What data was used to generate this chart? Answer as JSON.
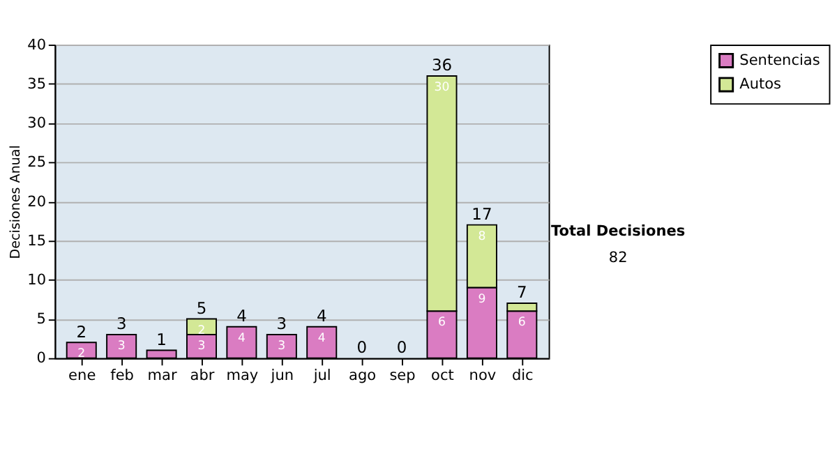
{
  "chart_data": {
    "type": "bar",
    "stacked": true,
    "ylabel": "Decisiones Anual",
    "categories": [
      "ene",
      "feb",
      "mar",
      "abr",
      "may",
      "jun",
      "jul",
      "ago",
      "sep",
      "oct",
      "nov",
      "dic"
    ],
    "series": [
      {
        "name": "Sentencias",
        "color": "#da7cc2",
        "values": [
          2,
          3,
          1,
          3,
          4,
          3,
          4,
          0,
          0,
          6,
          9,
          6
        ],
        "value_labels": [
          "2",
          "3",
          null,
          "3",
          "4",
          "3",
          "4",
          null,
          null,
          "6",
          "9",
          "6"
        ]
      },
      {
        "name": "Autos",
        "color": "#d3e896",
        "values": [
          0,
          0,
          0,
          2,
          0,
          0,
          0,
          0,
          0,
          30,
          8,
          1
        ],
        "value_labels": [
          null,
          null,
          null,
          "2",
          null,
          null,
          null,
          null,
          null,
          "30",
          "8",
          null
        ]
      }
    ],
    "totals": [
      "2",
      "3",
      "1",
      "5",
      "4",
      "3",
      "4",
      "0",
      "0",
      "36",
      "17",
      "7"
    ],
    "ylim": [
      0,
      40
    ],
    "yticks": [
      0,
      5,
      10,
      15,
      20,
      25,
      30,
      35,
      40
    ],
    "grid": "y",
    "legend": "right",
    "annotations": [
      "Total Decisiones",
      "82"
    ]
  }
}
